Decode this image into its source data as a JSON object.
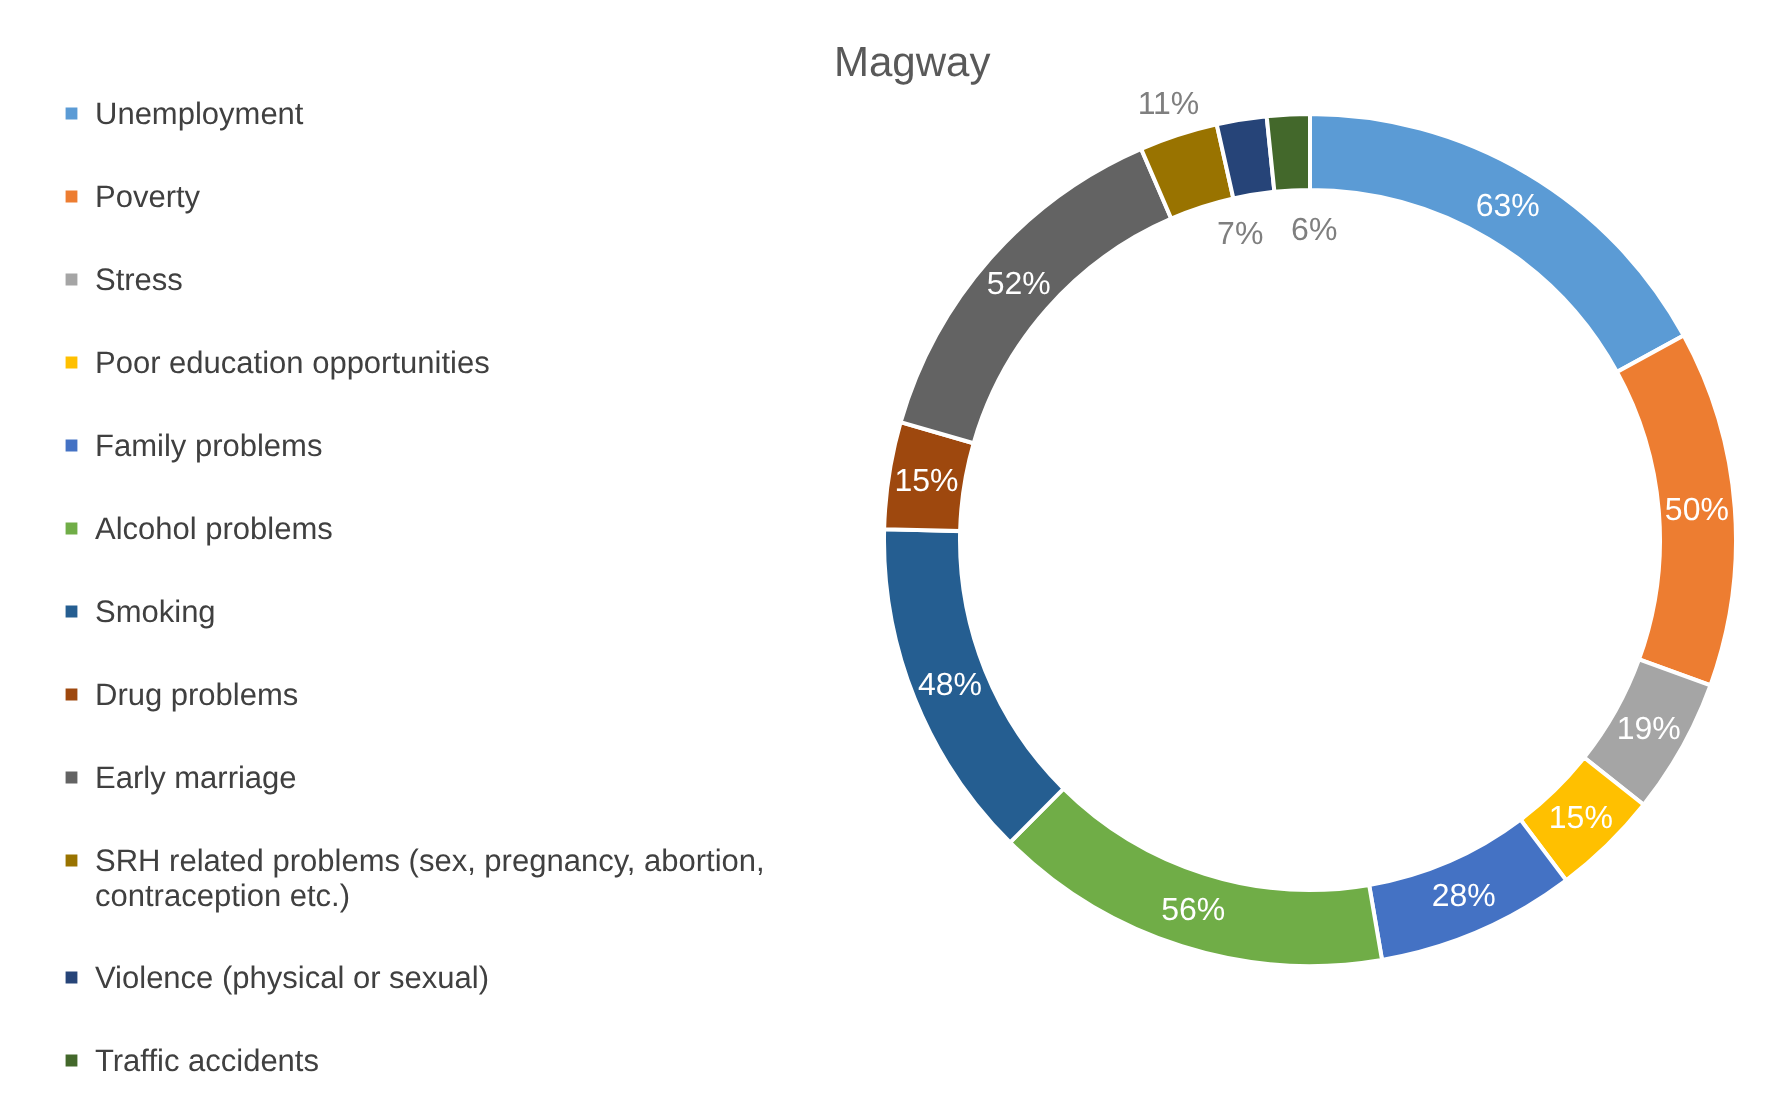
{
  "chart_data": {
    "type": "donut",
    "title": "Magway",
    "categories": [
      "Unemployment",
      "Poverty",
      "Stress",
      "Poor education opportunities",
      "Family problems",
      "Alcohol problems",
      "Smoking",
      "Drug problems",
      "Early marriage",
      "SRH related problems (sex, pregnancy, abortion, contraception etc.)",
      "Violence (physical or sexual)",
      "Traffic accidents"
    ],
    "values": [
      63,
      50,
      19,
      15,
      28,
      56,
      48,
      15,
      52,
      11,
      7,
      6
    ],
    "colors": [
      "#5b9bd5",
      "#ed7d31",
      "#a5a5a5",
      "#ffc000",
      "#4472c4",
      "#70ad47",
      "#255e91",
      "#9e480e",
      "#636363",
      "#997300",
      "#264478",
      "#43682b"
    ],
    "value_labels": [
      "63%",
      "50%",
      "19%",
      "15%",
      "28%",
      "56%",
      "48%",
      "15%",
      "52%",
      "11%",
      "7%",
      "6%"
    ],
    "legend": "left"
  }
}
